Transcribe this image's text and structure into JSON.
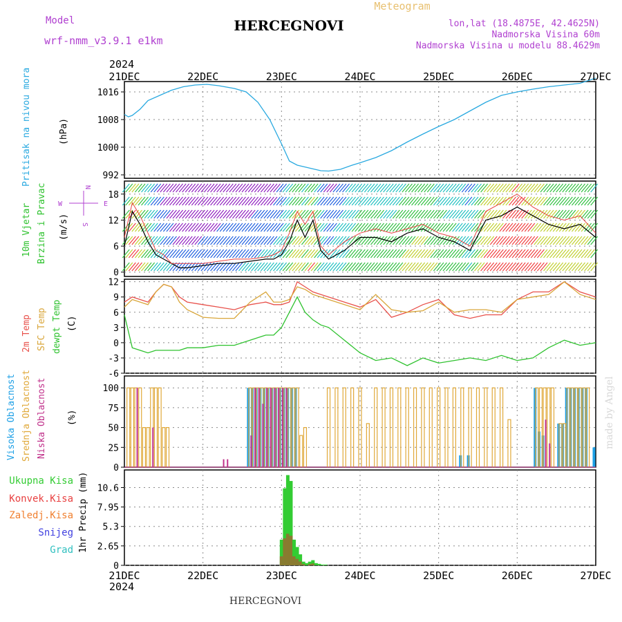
{
  "header": {
    "model_label": "Model",
    "model_name": "wrf-nmm_v3.9.1 e1km",
    "title": "HERCEGNOVI",
    "meteogram": "Meteogram",
    "lonlat": "lon,lat (18.4875E, 42.4625N)",
    "altitude": "Nadmorska Visina 60m",
    "model_altitude": "Nadmorska Visina u modelu 88.4629m",
    "footer_title": "HERCEGNOVI",
    "watermark": "made by Angel"
  },
  "colors": {
    "pressure": "#29a9e0",
    "temp2m": "#e8504a",
    "sfc_temp": "#d9a63a",
    "dewpt": "#2ec22e",
    "high_cloud": "#1ea0e6",
    "mid_cloud": "#e0a838",
    "low_cloud": "#c0308a",
    "total_precip": "#33cc33",
    "conv_precip": "#e84040",
    "frozen_precip": "#f08030",
    "snow": "#4040e0",
    "hail": "#30c0c0",
    "axis_label": "#000000"
  },
  "chart_data": {
    "x_axis": {
      "year": "2024",
      "ticks": [
        "21DEC",
        "22DEC",
        "23DEC",
        "24DEC",
        "25DEC",
        "26DEC",
        "27DEC"
      ],
      "range_days": [
        0,
        6
      ]
    },
    "pressure": {
      "type": "line",
      "ylabel_main": "Pritisak na nivou mora",
      "ylabel_unit": "(hPa)",
      "yticks": [
        "1016",
        "1008",
        "1000",
        "992"
      ],
      "ylim": [
        991,
        1019
      ],
      "x": [
        0,
        0.05,
        0.1,
        0.2,
        0.3,
        0.45,
        0.6,
        0.75,
        0.9,
        1.05,
        1.2,
        1.4,
        1.55,
        1.7,
        1.85,
        2.0,
        2.1,
        2.2,
        2.35,
        2.5,
        2.6,
        2.75,
        2.9,
        3.0,
        3.2,
        3.4,
        3.6,
        3.8,
        4.0,
        4.2,
        4.4,
        4.6,
        4.8,
        5.0,
        5.2,
        5.4,
        5.6,
        5.8,
        6.0
      ],
      "values": [
        1009.5,
        1008.8,
        1009.2,
        1011,
        1013.5,
        1015,
        1016.5,
        1017.5,
        1018,
        1018.2,
        1017.8,
        1017,
        1016,
        1013,
        1008,
        1001,
        996,
        994.8,
        994,
        993.2,
        993.1,
        993.6,
        994.8,
        995.5,
        997,
        999,
        1001.5,
        1003.8,
        1006,
        1008,
        1010.5,
        1013,
        1015,
        1016,
        1016.8,
        1017.5,
        1018,
        1018.5,
        1020
      ]
    },
    "wind": {
      "type": "barbs",
      "ylabel_main": "10m Vjetar",
      "ylabel_sub": "Brzina i Pravac",
      "ylabel_unit": "(m/s)",
      "yticks": [
        "18",
        "12",
        "6",
        "0"
      ],
      "ylim": [
        -1,
        21
      ],
      "compass": {
        "n": "N",
        "e": "E",
        "w": "W",
        "s": "S"
      },
      "x": [
        0,
        0.1,
        0.2,
        0.3,
        0.4,
        0.5,
        0.6,
        0.7,
        0.8,
        1.0,
        1.2,
        1.4,
        1.6,
        1.8,
        1.9,
        2.0,
        2.1,
        2.2,
        2.3,
        2.4,
        2.5,
        2.6,
        2.8,
        3.0,
        3.2,
        3.4,
        3.6,
        3.8,
        4.0,
        4.2,
        4.4,
        4.6,
        4.8,
        5.0,
        5.2,
        5.4,
        5.6,
        5.8,
        6.0
      ],
      "speed": [
        6,
        14,
        11,
        7,
        4,
        3,
        2,
        1,
        1,
        1.5,
        2,
        2,
        2.5,
        3,
        3,
        4,
        7,
        12,
        8,
        12,
        5,
        3,
        5,
        8,
        8,
        7,
        9,
        10,
        8,
        7,
        5,
        12,
        13,
        15,
        13,
        11,
        10,
        11,
        8
      ],
      "gust": [
        8,
        16,
        13,
        9,
        5,
        4,
        2,
        2,
        2,
        2,
        2.5,
        3,
        3,
        3.5,
        4,
        5,
        9,
        14,
        11,
        14,
        6,
        4,
        7,
        9,
        10,
        9,
        10,
        11,
        9,
        8,
        6,
        14,
        16,
        18,
        15,
        13,
        12,
        13,
        9
      ]
    },
    "temperature": {
      "type": "line",
      "ylabel_main": "2m Temp",
      "ylabel_sfc": "SFC Temp",
      "ylabel_dew": "dewpt Temp",
      "ylabel_unit": "(C)",
      "yticks": [
        "12",
        "9",
        "6",
        "3",
        "0",
        "-3",
        "-6"
      ],
      "ylim": [
        -6,
        12.5
      ],
      "x": [
        0,
        0.1,
        0.2,
        0.3,
        0.4,
        0.5,
        0.6,
        0.7,
        0.8,
        1.0,
        1.2,
        1.4,
        1.6,
        1.8,
        1.9,
        2.0,
        2.1,
        2.2,
        2.3,
        2.4,
        2.5,
        2.6,
        2.8,
        3.0,
        3.2,
        3.4,
        3.6,
        3.8,
        4.0,
        4.2,
        4.4,
        4.6,
        4.8,
        5.0,
        5.2,
        5.4,
        5.6,
        5.8,
        6.0
      ],
      "series": [
        {
          "name": "2m Temp",
          "values": [
            8,
            9,
            8.5,
            8,
            10,
            11.5,
            11,
            9,
            8,
            7.5,
            7,
            6.5,
            7.5,
            8,
            7.5,
            7.5,
            8,
            12,
            11,
            10,
            9.5,
            9,
            8,
            7,
            8.5,
            5,
            6,
            7.5,
            8.5,
            5.5,
            4.8,
            5.5,
            5.5,
            8.5,
            10,
            10,
            12,
            10,
            9
          ]
        },
        {
          "name": "SFC Temp",
          "values": [
            7,
            8.5,
            8,
            7.5,
            10,
            11.5,
            11,
            8,
            6.5,
            5,
            4.8,
            4.8,
            8,
            10,
            8,
            8,
            8.5,
            11,
            10.5,
            9.5,
            9,
            8.5,
            7.5,
            6.5,
            9.5,
            6.5,
            6,
            6.3,
            8,
            6,
            6.5,
            6.5,
            6,
            8.5,
            9,
            9.5,
            12,
            9.5,
            8.5
          ]
        },
        {
          "name": "dewpt Temp",
          "values": [
            5.5,
            -1,
            -1.5,
            -2,
            -1.5,
            -1.5,
            -1.5,
            -1.5,
            -1,
            -1,
            -0.5,
            -0.5,
            0.5,
            1.5,
            1.5,
            3,
            6,
            9,
            6,
            4.5,
            3.5,
            3,
            0.5,
            -2,
            -3.5,
            -3,
            -4.5,
            -3,
            -4,
            -3.5,
            -3,
            -3.5,
            -2.5,
            -3.5,
            -3,
            -1,
            0.5,
            -0.5,
            0
          ]
        }
      ]
    },
    "clouds": {
      "type": "bar",
      "ylabel_high": "Visoka Oblacnost",
      "ylabel_mid": "Srednja Oblacnost",
      "ylabel_low": "Niska Oblacnost",
      "ylabel_unit": "(%)",
      "yticks": [
        "100",
        "75",
        "50",
        "25",
        "0"
      ],
      "ylim": [
        0,
        100
      ],
      "x": [
        0.05,
        0.1,
        0.15,
        0.2,
        0.25,
        0.3,
        0.35,
        0.4,
        0.45,
        0.5,
        0.55,
        0.6,
        1.25,
        1.3,
        1.55,
        1.6,
        1.65,
        1.7,
        1.75,
        1.8,
        1.85,
        1.9,
        1.95,
        2.0,
        2.05,
        2.1,
        2.15,
        2.2,
        2.25,
        2.3,
        2.6,
        2.7,
        2.8,
        2.9,
        3.0,
        3.1,
        3.2,
        3.3,
        3.4,
        3.5,
        3.6,
        3.7,
        3.8,
        3.9,
        4.0,
        4.1,
        4.2,
        4.3,
        4.4,
        4.5,
        4.6,
        4.7,
        4.8,
        4.9,
        5.0,
        5.1,
        5.2,
        5.25,
        5.3,
        5.35,
        5.4,
        5.45,
        5.55,
        5.6,
        5.65,
        5.7,
        5.75,
        5.8,
        5.85,
        5.9,
        5.95,
        6.0
      ],
      "series": [
        {
          "name": "Visoka Oblacnost",
          "values": [
            0,
            0,
            0,
            0,
            0,
            0,
            0,
            0,
            0,
            0,
            0,
            0,
            0,
            0,
            0,
            100,
            100,
            100,
            100,
            100,
            100,
            100,
            100,
            100,
            100,
            100,
            100,
            100,
            0,
            0,
            0,
            0,
            0,
            0,
            0,
            0,
            0,
            0,
            0,
            0,
            0,
            0,
            0,
            0,
            0,
            0,
            0,
            15,
            15,
            0,
            0,
            0,
            0,
            0,
            0,
            0,
            0,
            100,
            45,
            40,
            0,
            0,
            55,
            55,
            100,
            100,
            100,
            100,
            100,
            100,
            0,
            25
          ]
        },
        {
          "name": "Srednja Oblacnost",
          "values": [
            100,
            100,
            100,
            100,
            50,
            50,
            100,
            100,
            100,
            50,
            50,
            0,
            0,
            0,
            0,
            100,
            100,
            100,
            100,
            100,
            100,
            100,
            100,
            100,
            100,
            100,
            100,
            100,
            40,
            50,
            100,
            100,
            100,
            100,
            100,
            55,
            100,
            100,
            100,
            100,
            100,
            100,
            100,
            100,
            100,
            100,
            100,
            100,
            100,
            100,
            100,
            100,
            100,
            60,
            0,
            0,
            0,
            100,
            100,
            100,
            100,
            100,
            55,
            55,
            100,
            100,
            100,
            100,
            100,
            100,
            0,
            0
          ]
        },
        {
          "name": "Niska Oblacnost",
          "values": [
            0,
            0,
            100,
            0,
            0,
            0,
            50,
            0,
            0,
            0,
            0,
            0,
            10,
            10,
            0,
            40,
            100,
            100,
            80,
            100,
            100,
            100,
            100,
            100,
            100,
            0,
            0,
            0,
            0,
            0,
            0,
            0,
            0,
            0,
            0,
            0,
            0,
            0,
            0,
            0,
            0,
            0,
            0,
            0,
            0,
            0,
            0,
            0,
            0,
            0,
            0,
            0,
            0,
            0,
            0,
            0,
            0,
            0,
            0,
            60,
            30,
            0,
            0,
            0,
            0,
            0,
            0,
            0,
            0,
            0,
            0,
            0
          ]
        }
      ]
    },
    "precip": {
      "type": "bar",
      "ylabel_total": "Ukupna Kisa",
      "ylabel_conv": "Konvek.Kisa",
      "ylabel_frozen": "Zaledj.Kisa",
      "ylabel_snow": "Snijeg",
      "ylabel_hail": "Grad",
      "ylabel_unit": "1hr Precip (mm)",
      "yticks": [
        "10.6",
        "7.95",
        "5.3",
        "2.65",
        "0"
      ],
      "ylim": [
        0,
        13
      ],
      "x": [
        2.0,
        2.04,
        2.08,
        2.12,
        2.16,
        2.2,
        2.24,
        2.28,
        2.32,
        2.36,
        2.4,
        2.44,
        2.48,
        2.52,
        2.56
      ],
      "series": [
        {
          "name": "Ukupna Kisa",
          "values": [
            3.5,
            10.5,
            12.3,
            11.5,
            3.5,
            2.5,
            1.5,
            0.5,
            0.3,
            0.5,
            0.7,
            0.3,
            0.2,
            0.1,
            0.1
          ]
        }
      ]
    }
  }
}
